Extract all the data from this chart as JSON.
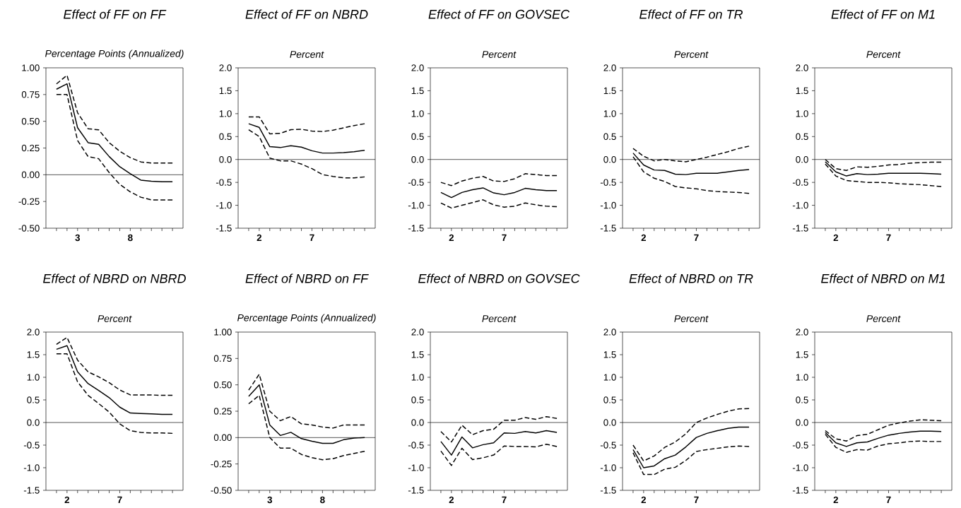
{
  "chart_data": [
    {
      "type": "line",
      "title": "Effect of FF on FF",
      "subtitle": "Percentage Points (Annualized)",
      "x": [
        1,
        2,
        3,
        4,
        5,
        6,
        7,
        8,
        9,
        10,
        11,
        12
      ],
      "xlim": [
        0,
        13
      ],
      "xticks": [
        {
          "value": 1,
          "label": null
        },
        {
          "value": 2,
          "label": null
        },
        {
          "value": 3,
          "label": "3"
        },
        {
          "value": 4,
          "label": null
        },
        {
          "value": 5,
          "label": null
        },
        {
          "value": 6,
          "label": null
        },
        {
          "value": 7,
          "label": null
        },
        {
          "value": 8,
          "label": "8"
        },
        {
          "value": 9,
          "label": null
        },
        {
          "value": 10,
          "label": null
        },
        {
          "value": 11,
          "label": null
        },
        {
          "value": 12,
          "label": null
        }
      ],
      "ylim": [
        -0.5,
        1.0
      ],
      "yticks": [
        {
          "value": -0.5,
          "label": "-0.50"
        },
        {
          "value": -0.25,
          "label": "-0.25"
        },
        {
          "value": 0,
          "label": "0.00"
        },
        {
          "value": 0.25,
          "label": "0.25"
        },
        {
          "value": 0.5,
          "label": "0.50"
        },
        {
          "value": 0.75,
          "label": "0.75"
        },
        {
          "value": 1.0,
          "label": "1.00"
        }
      ],
      "ref_lines": [
        {
          "axis": "y",
          "value": 0,
          "color": "#000000"
        }
      ],
      "series": [
        {
          "color": "#000000",
          "line_style": "solid",
          "values": [
            0.8,
            0.85,
            0.44,
            0.3,
            0.285,
            0.17,
            0.075,
            0.01,
            -0.05,
            -0.06,
            -0.065,
            -0.065
          ]
        },
        {
          "color": "#000000",
          "line_style": "dashed",
          "values": [
            0.85,
            0.93,
            0.58,
            0.43,
            0.42,
            0.3,
            0.22,
            0.16,
            0.12,
            0.11,
            0.11,
            0.11
          ]
        },
        {
          "color": "#000000",
          "line_style": "dashed",
          "values": [
            0.75,
            0.75,
            0.32,
            0.17,
            0.15,
            0.02,
            -0.09,
            -0.16,
            -0.21,
            -0.235,
            -0.235,
            -0.235
          ]
        }
      ]
    },
    {
      "type": "line",
      "title": "Effect of FF on NBRD",
      "subtitle": "Percent",
      "x": [
        1,
        2,
        3,
        4,
        5,
        6,
        7,
        8,
        9,
        10,
        11,
        12
      ],
      "xlim": [
        0,
        13
      ],
      "xticks": [
        {
          "value": 1,
          "label": null
        },
        {
          "value": 2,
          "label": "2"
        },
        {
          "value": 3,
          "label": null
        },
        {
          "value": 4,
          "label": null
        },
        {
          "value": 5,
          "label": null
        },
        {
          "value": 6,
          "label": null
        },
        {
          "value": 7,
          "label": "7"
        },
        {
          "value": 8,
          "label": null
        },
        {
          "value": 9,
          "label": null
        },
        {
          "value": 10,
          "label": null
        },
        {
          "value": 11,
          "label": null
        },
        {
          "value": 12,
          "label": null
        }
      ],
      "ylim": [
        -1.5,
        2.0
      ],
      "yticks": [
        {
          "value": -1.5,
          "label": "-1.5"
        },
        {
          "value": -1.0,
          "label": "-1.0"
        },
        {
          "value": -0.5,
          "label": "-0.5"
        },
        {
          "value": 0,
          "label": "0.0"
        },
        {
          "value": 0.5,
          "label": "0.5"
        },
        {
          "value": 1.0,
          "label": "1.0"
        },
        {
          "value": 1.5,
          "label": "1.5"
        },
        {
          "value": 2.0,
          "label": "2.0"
        }
      ],
      "ref_lines": [
        {
          "axis": "y",
          "value": 0,
          "color": "#000000"
        }
      ],
      "series": [
        {
          "color": "#000000",
          "line_style": "solid",
          "values": [
            0.78,
            0.7,
            0.28,
            0.26,
            0.3,
            0.27,
            0.19,
            0.14,
            0.14,
            0.15,
            0.17,
            0.2
          ]
        },
        {
          "color": "#000000",
          "line_style": "dashed",
          "values": [
            0.93,
            0.93,
            0.56,
            0.57,
            0.65,
            0.66,
            0.62,
            0.61,
            0.64,
            0.69,
            0.74,
            0.78
          ]
        },
        {
          "color": "#000000",
          "line_style": "dashed",
          "values": [
            0.65,
            0.5,
            0.03,
            -0.03,
            -0.03,
            -0.1,
            -0.2,
            -0.33,
            -0.37,
            -0.4,
            -0.4,
            -0.38
          ]
        }
      ]
    },
    {
      "type": "line",
      "title": "Effect of FF on GOVSEC",
      "subtitle": "Percent",
      "x": [
        1,
        2,
        3,
        4,
        5,
        6,
        7,
        8,
        9,
        10,
        11,
        12
      ],
      "xlim": [
        0,
        13
      ],
      "xticks": [
        {
          "value": 1,
          "label": null
        },
        {
          "value": 2,
          "label": "2"
        },
        {
          "value": 3,
          "label": null
        },
        {
          "value": 4,
          "label": null
        },
        {
          "value": 5,
          "label": null
        },
        {
          "value": 6,
          "label": null
        },
        {
          "value": 7,
          "label": "7"
        },
        {
          "value": 8,
          "label": null
        },
        {
          "value": 9,
          "label": null
        },
        {
          "value": 10,
          "label": null
        },
        {
          "value": 11,
          "label": null
        },
        {
          "value": 12,
          "label": null
        }
      ],
      "ylim": [
        -1.5,
        2.0
      ],
      "yticks": [
        {
          "value": -1.5,
          "label": "-1.5"
        },
        {
          "value": -1.0,
          "label": "-1.0"
        },
        {
          "value": -0.5,
          "label": "-0.5"
        },
        {
          "value": 0,
          "label": "0.0"
        },
        {
          "value": 0.5,
          "label": "0.5"
        },
        {
          "value": 1.0,
          "label": "1.0"
        },
        {
          "value": 1.5,
          "label": "1.5"
        },
        {
          "value": 2.0,
          "label": "2.0"
        }
      ],
      "ref_lines": [
        {
          "axis": "y",
          "value": 0,
          "color": "#000000"
        }
      ],
      "series": [
        {
          "color": "#000000",
          "line_style": "solid",
          "values": [
            -0.72,
            -0.83,
            -0.72,
            -0.66,
            -0.62,
            -0.73,
            -0.77,
            -0.72,
            -0.63,
            -0.66,
            -0.68,
            -0.68
          ]
        },
        {
          "color": "#000000",
          "line_style": "dashed",
          "values": [
            -0.5,
            -0.57,
            -0.47,
            -0.41,
            -0.37,
            -0.47,
            -0.48,
            -0.42,
            -0.31,
            -0.33,
            -0.35,
            -0.35
          ]
        },
        {
          "color": "#000000",
          "line_style": "dashed",
          "values": [
            -0.95,
            -1.06,
            -1.0,
            -0.94,
            -0.88,
            -0.99,
            -1.04,
            -1.02,
            -0.95,
            -0.99,
            -1.02,
            -1.03
          ]
        }
      ]
    },
    {
      "type": "line",
      "title": "Effect of FF on TR",
      "subtitle": "Percent",
      "x": [
        1,
        2,
        3,
        4,
        5,
        6,
        7,
        8,
        9,
        10,
        11,
        12
      ],
      "xlim": [
        0,
        13
      ],
      "xticks": [
        {
          "value": 1,
          "label": null
        },
        {
          "value": 2,
          "label": "2"
        },
        {
          "value": 3,
          "label": null
        },
        {
          "value": 4,
          "label": null
        },
        {
          "value": 5,
          "label": null
        },
        {
          "value": 6,
          "label": null
        },
        {
          "value": 7,
          "label": "7"
        },
        {
          "value": 8,
          "label": null
        },
        {
          "value": 9,
          "label": null
        },
        {
          "value": 10,
          "label": null
        },
        {
          "value": 11,
          "label": null
        },
        {
          "value": 12,
          "label": null
        }
      ],
      "ylim": [
        -1.5,
        2.0
      ],
      "yticks": [
        {
          "value": -1.5,
          "label": "-1.5"
        },
        {
          "value": -1.0,
          "label": "-1.0"
        },
        {
          "value": -0.5,
          "label": "-0.5"
        },
        {
          "value": 0,
          "label": "0.0"
        },
        {
          "value": 0.5,
          "label": "0.5"
        },
        {
          "value": 1.0,
          "label": "1.0"
        },
        {
          "value": 1.5,
          "label": "1.5"
        },
        {
          "value": 2.0,
          "label": "2.0"
        }
      ],
      "ref_lines": [
        {
          "axis": "y",
          "value": 0,
          "color": "#000000"
        }
      ],
      "series": [
        {
          "color": "#000000",
          "line_style": "solid",
          "values": [
            0.14,
            -0.12,
            -0.23,
            -0.24,
            -0.32,
            -0.33,
            -0.3,
            -0.3,
            -0.3,
            -0.27,
            -0.24,
            -0.22
          ]
        },
        {
          "color": "#000000",
          "line_style": "dashed",
          "values": [
            0.24,
            0.07,
            -0.03,
            0.0,
            -0.03,
            -0.05,
            0.0,
            0.05,
            0.11,
            0.17,
            0.24,
            0.29
          ]
        },
        {
          "color": "#000000",
          "line_style": "dashed",
          "values": [
            0.06,
            -0.27,
            -0.41,
            -0.48,
            -0.59,
            -0.62,
            -0.64,
            -0.68,
            -0.7,
            -0.71,
            -0.72,
            -0.74
          ]
        }
      ]
    },
    {
      "type": "line",
      "title": "Effect of FF on M1",
      "subtitle": "Percent",
      "x": [
        1,
        2,
        3,
        4,
        5,
        6,
        7,
        8,
        9,
        10,
        11,
        12
      ],
      "xlim": [
        0,
        13
      ],
      "xticks": [
        {
          "value": 1,
          "label": null
        },
        {
          "value": 2,
          "label": "2"
        },
        {
          "value": 3,
          "label": null
        },
        {
          "value": 4,
          "label": null
        },
        {
          "value": 5,
          "label": null
        },
        {
          "value": 6,
          "label": null
        },
        {
          "value": 7,
          "label": "7"
        },
        {
          "value": 8,
          "label": null
        },
        {
          "value": 9,
          "label": null
        },
        {
          "value": 10,
          "label": null
        },
        {
          "value": 11,
          "label": null
        },
        {
          "value": 12,
          "label": null
        }
      ],
      "ylim": [
        -1.5,
        2.0
      ],
      "yticks": [
        {
          "value": -1.5,
          "label": "-1.5"
        },
        {
          "value": -1.0,
          "label": "-1.0"
        },
        {
          "value": -0.5,
          "label": "-0.5"
        },
        {
          "value": 0,
          "label": "0.0"
        },
        {
          "value": 0.5,
          "label": "0.5"
        },
        {
          "value": 1.0,
          "label": "1.0"
        },
        {
          "value": 1.5,
          "label": "1.5"
        },
        {
          "value": 2.0,
          "label": "2.0"
        }
      ],
      "ref_lines": [
        {
          "axis": "y",
          "value": 0,
          "color": "#000000"
        }
      ],
      "series": [
        {
          "color": "#000000",
          "line_style": "solid",
          "values": [
            -0.05,
            -0.27,
            -0.36,
            -0.31,
            -0.33,
            -0.32,
            -0.3,
            -0.3,
            -0.3,
            -0.3,
            -0.31,
            -0.32
          ]
        },
        {
          "color": "#000000",
          "line_style": "dashed",
          "values": [
            0.0,
            -0.2,
            -0.24,
            -0.16,
            -0.17,
            -0.15,
            -0.12,
            -0.11,
            -0.08,
            -0.07,
            -0.06,
            -0.06
          ]
        },
        {
          "color": "#000000",
          "line_style": "dashed",
          "values": [
            -0.1,
            -0.36,
            -0.46,
            -0.48,
            -0.5,
            -0.5,
            -0.51,
            -0.53,
            -0.54,
            -0.55,
            -0.57,
            -0.59
          ]
        }
      ]
    },
    {
      "type": "line",
      "title": "Effect of NBRD on NBRD",
      "subtitle": "Percent",
      "x": [
        1,
        2,
        3,
        4,
        5,
        6,
        7,
        8,
        9,
        10,
        11,
        12
      ],
      "xlim": [
        0,
        13
      ],
      "xticks": [
        {
          "value": 1,
          "label": null
        },
        {
          "value": 2,
          "label": "2"
        },
        {
          "value": 3,
          "label": null
        },
        {
          "value": 4,
          "label": null
        },
        {
          "value": 5,
          "label": null
        },
        {
          "value": 6,
          "label": null
        },
        {
          "value": 7,
          "label": "7"
        },
        {
          "value": 8,
          "label": null
        },
        {
          "value": 9,
          "label": null
        },
        {
          "value": 10,
          "label": null
        },
        {
          "value": 11,
          "label": null
        },
        {
          "value": 12,
          "label": null
        }
      ],
      "ylim": [
        -1.5,
        2.0
      ],
      "yticks": [
        {
          "value": -1.5,
          "label": "-1.5"
        },
        {
          "value": -1.0,
          "label": "-1.0"
        },
        {
          "value": -0.5,
          "label": "-0.5"
        },
        {
          "value": 0,
          "label": "0.0"
        },
        {
          "value": 0.5,
          "label": "0.5"
        },
        {
          "value": 1.0,
          "label": "1.0"
        },
        {
          "value": 1.5,
          "label": "1.5"
        },
        {
          "value": 2.0,
          "label": "2.0"
        }
      ],
      "ref_lines": [
        {
          "axis": "y",
          "value": 0,
          "color": "#000000"
        }
      ],
      "series": [
        {
          "color": "#000000",
          "line_style": "solid",
          "values": [
            1.62,
            1.7,
            1.12,
            0.86,
            0.71,
            0.55,
            0.34,
            0.21,
            0.2,
            0.19,
            0.18,
            0.18
          ]
        },
        {
          "color": "#000000",
          "line_style": "dashed",
          "values": [
            1.73,
            1.88,
            1.38,
            1.12,
            1.01,
            0.88,
            0.72,
            0.61,
            0.61,
            0.61,
            0.6,
            0.6
          ]
        },
        {
          "color": "#000000",
          "line_style": "dashed",
          "values": [
            1.52,
            1.52,
            0.9,
            0.6,
            0.42,
            0.23,
            -0.03,
            -0.18,
            -0.22,
            -0.23,
            -0.23,
            -0.24
          ]
        }
      ]
    },
    {
      "type": "line",
      "title": "Effect of NBRD on FF",
      "subtitle": "Percentage Points (Annualized)",
      "x": [
        1,
        2,
        3,
        4,
        5,
        6,
        7,
        8,
        9,
        10,
        11,
        12
      ],
      "xlim": [
        0,
        13
      ],
      "xticks": [
        {
          "value": 1,
          "label": null
        },
        {
          "value": 2,
          "label": null
        },
        {
          "value": 3,
          "label": "3"
        },
        {
          "value": 4,
          "label": null
        },
        {
          "value": 5,
          "label": null
        },
        {
          "value": 6,
          "label": null
        },
        {
          "value": 7,
          "label": null
        },
        {
          "value": 8,
          "label": "8"
        },
        {
          "value": 9,
          "label": null
        },
        {
          "value": 10,
          "label": null
        },
        {
          "value": 11,
          "label": null
        },
        {
          "value": 12,
          "label": null
        }
      ],
      "ylim": [
        -0.5,
        1.0
      ],
      "yticks": [
        {
          "value": -0.5,
          "label": "-0.50"
        },
        {
          "value": -0.25,
          "label": "-0.25"
        },
        {
          "value": 0,
          "label": "0.00"
        },
        {
          "value": 0.25,
          "label": "0.25"
        },
        {
          "value": 0.5,
          "label": "0.50"
        },
        {
          "value": 0.75,
          "label": "0.75"
        },
        {
          "value": 1.0,
          "label": "1.00"
        }
      ],
      "ref_lines": [
        {
          "axis": "y",
          "value": 0,
          "color": "#000000"
        }
      ],
      "series": [
        {
          "color": "#000000",
          "line_style": "solid",
          "values": [
            0.39,
            0.5,
            0.12,
            0.02,
            0.05,
            -0.01,
            -0.035,
            -0.055,
            -0.055,
            -0.02,
            -0.005,
            0.0
          ]
        },
        {
          "color": "#000000",
          "line_style": "dashed",
          "values": [
            0.45,
            0.6,
            0.25,
            0.16,
            0.2,
            0.13,
            0.12,
            0.1,
            0.09,
            0.12,
            0.12,
            0.12
          ]
        },
        {
          "color": "#000000",
          "line_style": "dashed",
          "values": [
            0.32,
            0.4,
            0.0,
            -0.1,
            -0.1,
            -0.16,
            -0.19,
            -0.21,
            -0.2,
            -0.17,
            -0.15,
            -0.13
          ]
        }
      ]
    },
    {
      "type": "line",
      "title": "Effect of NBRD on GOVSEC",
      "subtitle": "Percent",
      "x": [
        1,
        2,
        3,
        4,
        5,
        6,
        7,
        8,
        9,
        10,
        11,
        12
      ],
      "xlim": [
        0,
        13
      ],
      "xticks": [
        {
          "value": 1,
          "label": null
        },
        {
          "value": 2,
          "label": "2"
        },
        {
          "value": 3,
          "label": null
        },
        {
          "value": 4,
          "label": null
        },
        {
          "value": 5,
          "label": null
        },
        {
          "value": 6,
          "label": null
        },
        {
          "value": 7,
          "label": "7"
        },
        {
          "value": 8,
          "label": null
        },
        {
          "value": 9,
          "label": null
        },
        {
          "value": 10,
          "label": null
        },
        {
          "value": 11,
          "label": null
        },
        {
          "value": 12,
          "label": null
        }
      ],
      "ylim": [
        -1.5,
        2.0
      ],
      "yticks": [
        {
          "value": -1.5,
          "label": "-1.5"
        },
        {
          "value": -1.0,
          "label": "-1.0"
        },
        {
          "value": -0.5,
          "label": "-0.5"
        },
        {
          "value": 0,
          "label": "0.0"
        },
        {
          "value": 0.5,
          "label": "0.5"
        },
        {
          "value": 1.0,
          "label": "1.0"
        },
        {
          "value": 1.5,
          "label": "1.5"
        },
        {
          "value": 2.0,
          "label": "2.0"
        }
      ],
      "ref_lines": [
        {
          "axis": "y",
          "value": 0,
          "color": "#000000"
        }
      ],
      "series": [
        {
          "color": "#000000",
          "line_style": "solid",
          "values": [
            -0.42,
            -0.72,
            -0.32,
            -0.56,
            -0.49,
            -0.45,
            -0.23,
            -0.24,
            -0.2,
            -0.23,
            -0.18,
            -0.22
          ]
        },
        {
          "color": "#000000",
          "line_style": "dashed",
          "values": [
            -0.2,
            -0.43,
            -0.06,
            -0.27,
            -0.18,
            -0.15,
            0.05,
            0.05,
            0.11,
            0.07,
            0.13,
            0.09
          ]
        },
        {
          "color": "#000000",
          "line_style": "dashed",
          "values": [
            -0.63,
            -0.95,
            -0.57,
            -0.82,
            -0.78,
            -0.72,
            -0.52,
            -0.53,
            -0.53,
            -0.54,
            -0.48,
            -0.53
          ]
        }
      ]
    },
    {
      "type": "line",
      "title": "Effect of NBRD on TR",
      "subtitle": "Percent",
      "x": [
        1,
        2,
        3,
        4,
        5,
        6,
        7,
        8,
        9,
        10,
        11,
        12
      ],
      "xlim": [
        0,
        13
      ],
      "xticks": [
        {
          "value": 1,
          "label": null
        },
        {
          "value": 2,
          "label": "2"
        },
        {
          "value": 3,
          "label": null
        },
        {
          "value": 4,
          "label": null
        },
        {
          "value": 5,
          "label": null
        },
        {
          "value": 6,
          "label": null
        },
        {
          "value": 7,
          "label": "7"
        },
        {
          "value": 8,
          "label": null
        },
        {
          "value": 9,
          "label": null
        },
        {
          "value": 10,
          "label": null
        },
        {
          "value": 11,
          "label": null
        },
        {
          "value": 12,
          "label": null
        }
      ],
      "ylim": [
        -1.5,
        2.0
      ],
      "yticks": [
        {
          "value": -1.5,
          "label": "-1.5"
        },
        {
          "value": -1.0,
          "label": "-1.0"
        },
        {
          "value": -0.5,
          "label": "-0.5"
        },
        {
          "value": 0,
          "label": "0.0"
        },
        {
          "value": 0.5,
          "label": "0.5"
        },
        {
          "value": 1.0,
          "label": "1.0"
        },
        {
          "value": 1.5,
          "label": "1.5"
        },
        {
          "value": 2.0,
          "label": "2.0"
        }
      ],
      "ref_lines": [
        {
          "axis": "y",
          "value": 0,
          "color": "#000000"
        }
      ],
      "series": [
        {
          "color": "#000000",
          "line_style": "solid",
          "values": [
            -0.6,
            -1.0,
            -0.96,
            -0.8,
            -0.72,
            -0.54,
            -0.33,
            -0.24,
            -0.18,
            -0.13,
            -0.1,
            -0.1
          ]
        },
        {
          "color": "#000000",
          "line_style": "dashed",
          "values": [
            -0.5,
            -0.85,
            -0.74,
            -0.55,
            -0.43,
            -0.25,
            0.0,
            0.1,
            0.18,
            0.25,
            0.3,
            0.31
          ]
        },
        {
          "color": "#000000",
          "line_style": "dashed",
          "values": [
            -0.67,
            -1.15,
            -1.15,
            -1.03,
            -0.99,
            -0.84,
            -0.64,
            -0.6,
            -0.57,
            -0.54,
            -0.52,
            -0.53
          ]
        }
      ]
    },
    {
      "type": "line",
      "title": "Effect of NBRD on M1",
      "subtitle": "Percent",
      "x": [
        1,
        2,
        3,
        4,
        5,
        6,
        7,
        8,
        9,
        10,
        11,
        12
      ],
      "xlim": [
        0,
        13
      ],
      "xticks": [
        {
          "value": 1,
          "label": null
        },
        {
          "value": 2,
          "label": "2"
        },
        {
          "value": 3,
          "label": null
        },
        {
          "value": 4,
          "label": null
        },
        {
          "value": 5,
          "label": null
        },
        {
          "value": 6,
          "label": null
        },
        {
          "value": 7,
          "label": "7"
        },
        {
          "value": 8,
          "label": null
        },
        {
          "value": 9,
          "label": null
        },
        {
          "value": 10,
          "label": null
        },
        {
          "value": 11,
          "label": null
        },
        {
          "value": 12,
          "label": null
        }
      ],
      "ylim": [
        -1.5,
        2.0
      ],
      "yticks": [
        {
          "value": -1.5,
          "label": "-1.5"
        },
        {
          "value": -1.0,
          "label": "-1.0"
        },
        {
          "value": -0.5,
          "label": "-0.5"
        },
        {
          "value": 0,
          "label": "0.0"
        },
        {
          "value": 0.5,
          "label": "0.5"
        },
        {
          "value": 1.0,
          "label": "1.0"
        },
        {
          "value": 1.5,
          "label": "1.5"
        },
        {
          "value": 2.0,
          "label": "2.0"
        }
      ],
      "ref_lines": [
        {
          "axis": "y",
          "value": 0,
          "color": "#000000"
        }
      ],
      "series": [
        {
          "color": "#000000",
          "line_style": "solid",
          "values": [
            -0.22,
            -0.45,
            -0.53,
            -0.45,
            -0.43,
            -0.35,
            -0.28,
            -0.24,
            -0.21,
            -0.19,
            -0.19,
            -0.2
          ]
        },
        {
          "color": "#000000",
          "line_style": "dashed",
          "values": [
            -0.18,
            -0.36,
            -0.41,
            -0.29,
            -0.26,
            -0.16,
            -0.06,
            -0.01,
            0.03,
            0.06,
            0.05,
            0.04
          ]
        },
        {
          "color": "#000000",
          "line_style": "dashed",
          "values": [
            -0.26,
            -0.55,
            -0.66,
            -0.6,
            -0.61,
            -0.52,
            -0.47,
            -0.45,
            -0.42,
            -0.41,
            -0.42,
            -0.42
          ]
        }
      ]
    }
  ]
}
